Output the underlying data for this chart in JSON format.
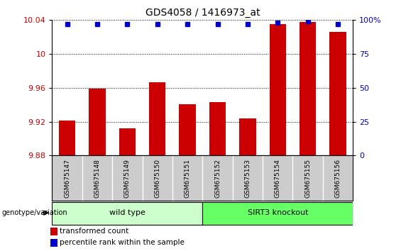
{
  "title": "GDS4058 / 1416973_at",
  "samples": [
    "GSM675147",
    "GSM675148",
    "GSM675149",
    "GSM675150",
    "GSM675151",
    "GSM675152",
    "GSM675153",
    "GSM675154",
    "GSM675155",
    "GSM675156"
  ],
  "bar_values": [
    9.921,
    9.959,
    9.912,
    9.967,
    9.941,
    9.943,
    9.924,
    10.035,
    10.038,
    10.026
  ],
  "percentile_values": [
    97,
    97,
    97,
    97,
    97,
    97,
    97,
    98,
    99,
    97
  ],
  "bar_color": "#cc0000",
  "dot_color": "#0000cc",
  "ylim_left": [
    9.88,
    10.04
  ],
  "yticks_left": [
    9.88,
    9.92,
    9.96,
    10.0,
    10.04
  ],
  "ytick_labels_left": [
    "9.88",
    "9.92",
    "9.96",
    "10",
    "10.04"
  ],
  "ylim_right": [
    0,
    100
  ],
  "yticks_right": [
    0,
    25,
    50,
    75,
    100
  ],
  "ytick_labels_right": [
    "0",
    "25",
    "50",
    "75",
    "100%"
  ],
  "wild_type_label": "wild type",
  "sirt3_label": "SIRT3 knockout",
  "genotype_label": "genotype/variation",
  "legend_bar_label": "transformed count",
  "legend_dot_label": "percentile rank within the sample",
  "wild_type_color": "#ccffcc",
  "sirt3_color": "#66ff66",
  "tick_bg_color": "#cccccc",
  "bar_width": 0.55,
  "n_wild": 5,
  "n_sirt3": 5
}
